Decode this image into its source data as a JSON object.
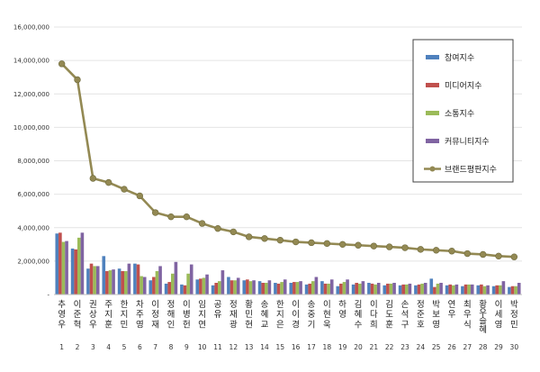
{
  "chart_data": {
    "type": "bar",
    "categories": [
      "추영우",
      "이준혁",
      "권상우",
      "주지훈",
      "한지민",
      "차주영",
      "이정재",
      "정해인",
      "이병헌",
      "임지연",
      "공유",
      "정재광",
      "황민현",
      "송혜교",
      "한지은",
      "이이경",
      "송중기",
      "이현욱",
      "하영",
      "김혜수",
      "이다희",
      "김도훈",
      "손석구",
      "정준호",
      "박보영",
      "연우",
      "최우식",
      "황우슬혜",
      "이세영",
      "박정민"
    ],
    "ranks": [
      "1",
      "2",
      "3",
      "4",
      "5",
      "6",
      "7",
      "8",
      "9",
      "10",
      "11",
      "12",
      "13",
      "14",
      "15",
      "16",
      "17",
      "18",
      "19",
      "20",
      "21",
      "22",
      "23",
      "24",
      "25",
      "26",
      "27",
      "28",
      "29",
      "30"
    ],
    "series": [
      {
        "name": "참여지수",
        "color": "#4F81BD",
        "values": [
          3650000,
          2750000,
          1550000,
          2300000,
          1550000,
          1850000,
          850000,
          650000,
          600000,
          900000,
          550000,
          1050000,
          850000,
          800000,
          700000,
          700000,
          600000,
          800000,
          500000,
          600000,
          700000,
          550000,
          550000,
          550000,
          950000,
          550000,
          500000,
          550000,
          500000,
          450000
        ]
      },
      {
        "name": "미디어지수",
        "color": "#C0504D",
        "values": [
          3700000,
          2700000,
          1850000,
          1400000,
          1400000,
          1800000,
          1050000,
          750000,
          550000,
          950000,
          700000,
          850000,
          900000,
          700000,
          650000,
          750000,
          650000,
          650000,
          650000,
          700000,
          650000,
          650000,
          600000,
          600000,
          450000,
          600000,
          600000,
          600000,
          550000,
          500000
        ]
      },
      {
        "name": "소통지수",
        "color": "#9BBB59",
        "values": [
          3150000,
          3400000,
          1700000,
          1450000,
          1400000,
          1100000,
          1400000,
          1250000,
          1250000,
          1000000,
          800000,
          850000,
          800000,
          700000,
          750000,
          750000,
          800000,
          650000,
          750000,
          650000,
          600000,
          650000,
          600000,
          650000,
          650000,
          550000,
          600000,
          500000,
          550000,
          500000
        ]
      },
      {
        "name": "커뮤니티지수",
        "color": "#8064A2",
        "values": [
          3200000,
          3700000,
          1700000,
          1500000,
          1850000,
          1050000,
          1700000,
          1950000,
          1800000,
          1200000,
          1450000,
          1000000,
          850000,
          850000,
          900000,
          800000,
          1050000,
          900000,
          900000,
          800000,
          700000,
          700000,
          650000,
          700000,
          700000,
          600000,
          600000,
          550000,
          800000,
          700000
        ]
      },
      {
        "name": "브랜드평판지수",
        "color": "#938953",
        "values": [
          13800000,
          12850000,
          6950000,
          6700000,
          6300000,
          5900000,
          4900000,
          4650000,
          4650000,
          4250000,
          3950000,
          3750000,
          3450000,
          3350000,
          3250000,
          3150000,
          3100000,
          3050000,
          3000000,
          2950000,
          2900000,
          2850000,
          2800000,
          2700000,
          2650000,
          2600000,
          2450000,
          2400000,
          2300000,
          2250000
        ]
      }
    ],
    "y_tick_labels": [
      "-",
      "2,000,000",
      "4,000,000",
      "6,000,000",
      "8,000,000",
      "10,000,000",
      "12,000,000",
      "14,000,000",
      "16,000,000"
    ],
    "ylim": [
      0,
      16000000
    ],
    "grid": true,
    "legend": "top-right",
    "title": "",
    "xlabel": "",
    "ylabel": ""
  }
}
